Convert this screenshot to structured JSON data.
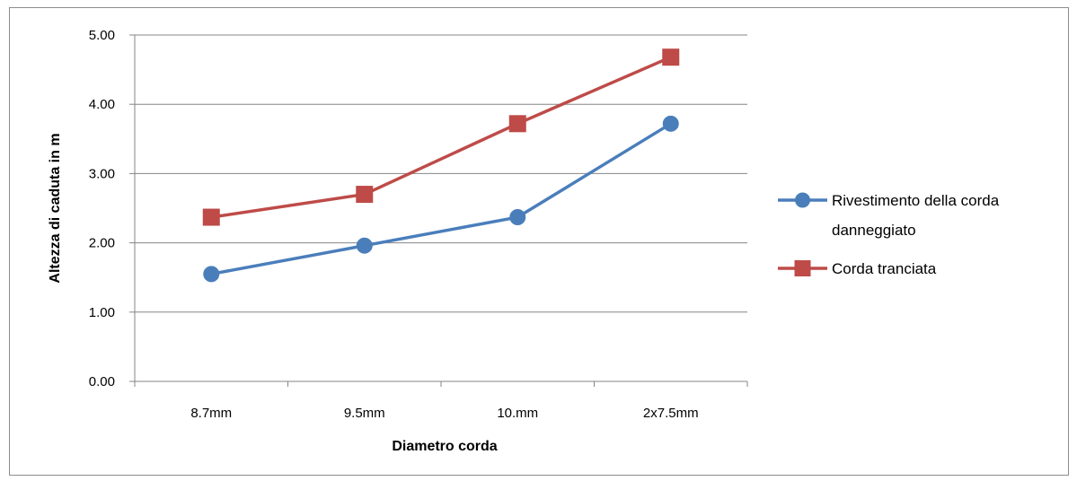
{
  "chart_data": {
    "type": "line",
    "categories": [
      "8.7mm",
      "9.5mm",
      "10.mm",
      "2x7.5mm"
    ],
    "series": [
      {
        "name": "Rivestimento della corda danneggiato",
        "values": [
          1.55,
          1.96,
          2.37,
          3.72
        ],
        "color": "#4a7ebb",
        "marker": "circle"
      },
      {
        "name": "Corda tranciata",
        "values": [
          2.37,
          2.7,
          3.72,
          4.68
        ],
        "color": "#be4b48",
        "marker": "square"
      }
    ],
    "xlabel": "Diametro corda",
    "ylabel": "Altezza di caduta in m",
    "ylim": [
      0,
      5
    ],
    "yticks": [
      "0.00",
      "1.00",
      "2.00",
      "3.00",
      "4.00",
      "5.00"
    ],
    "grid": true,
    "legend_position": "right",
    "gridline_color": "#868686",
    "axis_color": "#868686"
  }
}
